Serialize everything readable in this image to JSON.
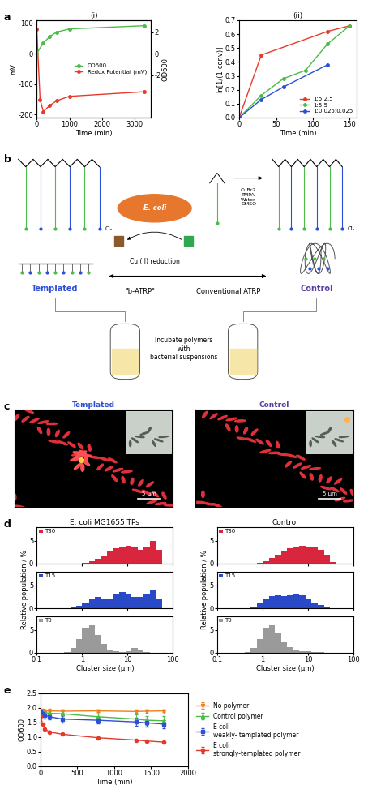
{
  "chart_data": [
    {
      "type": "line",
      "title": "(i)",
      "x_label": "Time (min)",
      "y_label": "mV",
      "y2_label": "OD600",
      "xlim": [
        0,
        3500
      ],
      "xticks": [
        0,
        1000,
        2000,
        3000
      ],
      "ylim": [
        -210,
        110
      ],
      "yticks": [
        -200,
        -100,
        0,
        100
      ],
      "y2lim": [
        -5.9,
        3.1
      ],
      "y2ticks": [
        -2,
        0,
        2
      ],
      "legend": "center right",
      "series": [
        {
          "name": "OD600",
          "color": "#4cbb47",
          "marker": "circle",
          "axis": "y2",
          "x": [
            0,
            200,
            400,
            600,
            1000,
            3300
          ],
          "values": [
            0.05,
            1.0,
            1.6,
            2.0,
            2.3,
            2.6
          ]
        },
        {
          "name": "Redox Potential (mV)",
          "color": "#e53a2a",
          "marker": "circle",
          "x": [
            0,
            100,
            200,
            400,
            600,
            1000,
            3300
          ],
          "values": [
            80,
            -150,
            -190,
            -170,
            -155,
            -140,
            -125
          ]
        }
      ]
    },
    {
      "type": "line",
      "title": "(ii)",
      "x_label": "Time (min)",
      "y_label": "ln[1/(1-conv)]",
      "xlim": [
        0,
        160
      ],
      "xticks": [
        0,
        50,
        100,
        150
      ],
      "ylim": [
        0,
        0.7
      ],
      "yticks": [
        {
          "value": 0,
          "label": "0.0"
        },
        0.1,
        0.2,
        0.3,
        0.4,
        0.5,
        0.6,
        0.7
      ],
      "legend": "lower right",
      "series": [
        {
          "name": "1:5:2.5",
          "color": "#e53a2a",
          "marker": "circle",
          "x": [
            0,
            30,
            120,
            150
          ],
          "values": [
            0,
            0.45,
            0.62,
            0.66
          ]
        },
        {
          "name": "1:5:5",
          "color": "#4cbb47",
          "marker": "circle",
          "x": [
            0,
            30,
            60,
            90,
            120,
            150
          ],
          "values": [
            0,
            0.16,
            0.28,
            0.34,
            0.53,
            0.66
          ]
        },
        {
          "name": "1:0.025:0.025",
          "color": "#2d4fd6",
          "marker": "circle",
          "x": [
            0,
            30,
            60,
            120
          ],
          "values": [
            0,
            0.13,
            0.22,
            0.38
          ]
        }
      ]
    },
    {
      "type": "histogram",
      "title": "E. coli MG1655 TPs",
      "log": "x",
      "tick_labels": "y",
      "xlim": [
        0.1,
        100
      ],
      "xticks": [
        0.1,
        1,
        10,
        100
      ],
      "ylim": [
        0,
        8
      ],
      "yticks": [
        0,
        5
      ],
      "legend": "upper left",
      "bins": [
        0.4,
        0.55,
        0.75,
        1.0,
        1.4,
        1.9,
        2.6,
        3.5,
        4.8,
        6.5,
        8.9,
        12,
        16.5,
        22.5,
        30.5,
        42,
        57
      ],
      "series": [
        {
          "name": "T30",
          "color": "#d7263d",
          "values": [
            0,
            0,
            0,
            0.2,
            0.5,
            1.0,
            1.8,
            2.6,
            3.3,
            3.8,
            4.0,
            3.6,
            3.0,
            3.5,
            5.0,
            3.0
          ]
        }
      ]
    },
    {
      "type": "histogram",
      "y_label": "Relative population / %",
      "log": "x",
      "tick_labels": "y",
      "xlim": [
        0.1,
        100
      ],
      "xticks": [
        0.1,
        1,
        10,
        100
      ],
      "ylim": [
        0,
        8
      ],
      "yticks": [
        0,
        5
      ],
      "legend": "upper left",
      "bins": [
        0.4,
        0.55,
        0.75,
        1.0,
        1.4,
        1.9,
        2.6,
        3.5,
        4.8,
        6.5,
        8.9,
        12,
        16.5,
        22.5,
        30.5,
        42,
        57
      ],
      "series": [
        {
          "name": "T15",
          "color": "#2a49c8",
          "values": [
            0,
            0.1,
            0.5,
            1.2,
            2.2,
            2.5,
            2.0,
            2.2,
            3.0,
            3.5,
            3.2,
            2.5,
            2.5,
            3.0,
            4.0,
            2.0
          ]
        }
      ]
    },
    {
      "type": "histogram",
      "x_label": "Cluster size (μm)",
      "log": "x",
      "xlim": [
        0.1,
        100
      ],
      "xticks": [
        0.1,
        1,
        10,
        100
      ],
      "ylim": [
        0,
        8
      ],
      "yticks": [
        0,
        5
      ],
      "legend": "upper left",
      "bins": [
        0.4,
        0.55,
        0.75,
        1.0,
        1.4,
        1.9,
        2.6,
        3.5,
        4.8,
        6.5,
        8.9,
        12,
        16.5,
        22.5,
        30.5,
        42,
        57
      ],
      "series": [
        {
          "name": "T0",
          "color": "#9a9a9a",
          "values": [
            0.2,
            1.0,
            3.0,
            5.5,
            6.0,
            4.0,
            2.0,
            0.8,
            0.3,
            0.1,
            0.3,
            1.0,
            0.8,
            0.1,
            0,
            0
          ]
        }
      ]
    },
    {
      "type": "histogram",
      "title": "Control",
      "log": "x",
      "tick_labels": "y",
      "xlim": [
        0.1,
        100
      ],
      "xticks": [
        0.1,
        1,
        10,
        100
      ],
      "ylim": [
        0,
        8
      ],
      "yticks": [
        0,
        5
      ],
      "legend": "upper left",
      "bins": [
        0.4,
        0.55,
        0.75,
        1.0,
        1.4,
        1.9,
        2.6,
        3.5,
        4.8,
        6.5,
        8.9,
        12,
        16.5,
        22.5,
        30.5,
        42,
        57
      ],
      "series": [
        {
          "name": "T30",
          "color": "#d7263d",
          "values": [
            0,
            0,
            0.2,
            0.5,
            1.2,
            2.0,
            2.8,
            3.4,
            3.8,
            4.0,
            3.8,
            3.5,
            3.0,
            2.0,
            0.3,
            0
          ]
        }
      ]
    },
    {
      "type": "histogram",
      "y_label": "Relative population / %",
      "log": "x",
      "tick_labels": "y",
      "xlim": [
        0.1,
        100
      ],
      "xticks": [
        0.1,
        1,
        10,
        100
      ],
      "ylim": [
        0,
        8
      ],
      "yticks": [
        0,
        5
      ],
      "legend": "upper left",
      "bins": [
        0.4,
        0.55,
        0.75,
        1.0,
        1.4,
        1.9,
        2.6,
        3.5,
        4.8,
        6.5,
        8.9,
        12,
        16.5,
        22.5,
        30.5,
        42,
        57
      ],
      "series": [
        {
          "name": "T15",
          "color": "#2a49c8",
          "values": [
            0,
            0.3,
            1.0,
            2.0,
            2.6,
            2.8,
            2.7,
            2.8,
            3.0,
            2.8,
            2.0,
            1.2,
            0.8,
            0.2,
            0,
            0
          ]
        }
      ]
    },
    {
      "type": "histogram",
      "x_label": "Cluster size (μm)",
      "log": "x",
      "xlim": [
        0.1,
        100
      ],
      "xticks": [
        0.1,
        1,
        10,
        100
      ],
      "ylim": [
        0,
        8
      ],
      "yticks": [
        0,
        5
      ],
      "legend": "upper left",
      "bins": [
        0.4,
        0.55,
        0.75,
        1.0,
        1.4,
        1.9,
        2.6,
        3.5,
        4.8,
        6.5,
        8.9,
        12,
        16.5,
        22.5,
        30.5,
        42,
        57
      ],
      "series": [
        {
          "name": "T0",
          "color": "#9a9a9a",
          "values": [
            0.2,
            1.0,
            3.0,
            5.5,
            6.0,
            4.5,
            2.5,
            1.2,
            0.7,
            0.4,
            0.3,
            0.2,
            0.1,
            0,
            0,
            0
          ]
        }
      ]
    },
    {
      "type": "line",
      "x_label": "Time (min)",
      "y_label": "OD600",
      "xlim": [
        0,
        2000
      ],
      "xticks": [
        0,
        500,
        1000,
        1500,
        2000
      ],
      "ylim": [
        0,
        2.5
      ],
      "yticks": [
        {
          "value": 0,
          "label": "0.0"
        },
        0.5,
        1.0,
        1.5,
        2.0,
        2.5
      ],
      "legend": "right",
      "x": [
        0,
        30,
        60,
        120,
        300,
        780,
        1300,
        1440,
        1680
      ],
      "series": [
        {
          "name": "No polymer",
          "color": "#f07f1e",
          "marker": "triangle_down",
          "values": [
            1.88,
            1.88,
            1.89,
            1.9,
            1.89,
            1.9,
            1.88,
            1.89,
            1.9
          ],
          "errors": [
            0.08,
            0.08,
            0.06,
            0.06,
            0.05,
            0.05,
            0.05,
            0.05,
            0.05
          ]
        },
        {
          "name": "Control polymer",
          "color": "#4cbb47",
          "marker": "triangle_up",
          "values": [
            1.85,
            1.85,
            1.84,
            1.82,
            1.8,
            1.7,
            1.62,
            1.58,
            1.56
          ],
          "errors": [
            0.05,
            0.05,
            0.06,
            0.06,
            0.08,
            0.1,
            0.15,
            0.15,
            0.15
          ]
        },
        {
          "name": "E coli\nweakly- templated polymer",
          "color": "#2d4fd6",
          "marker": "square",
          "values": [
            1.85,
            1.8,
            1.75,
            1.7,
            1.62,
            1.58,
            1.52,
            1.49,
            1.45
          ],
          "errors": [
            0.06,
            0.08,
            0.1,
            0.1,
            0.12,
            0.12,
            0.14,
            0.14,
            0.14
          ]
        },
        {
          "name": "E coli\nstrongly-templated polymer",
          "color": "#e53a2a",
          "marker": "circle",
          "values": [
            1.72,
            1.45,
            1.28,
            1.18,
            1.1,
            0.98,
            0.9,
            0.87,
            0.83
          ],
          "errors": [
            0.04,
            0.03,
            0.03,
            0.03,
            0.03,
            0.03,
            0.03,
            0.03,
            0.03
          ]
        }
      ]
    }
  ],
  "diagram": {
    "panel_labels": [
      "a",
      "b",
      "c",
      "d",
      "e"
    ],
    "b": {
      "left_label": "Templated",
      "right_label": "Control",
      "organism": "E. coli",
      "reduction": "Cu (II) reduction",
      "left_method": "\"b-ATRP\"",
      "right_method": "Conventional ATRP",
      "reagents": [
        "CuBr2",
        "TMPA",
        "Water",
        "DMSO"
      ],
      "counterion": "Cl-",
      "step": "Incubate polymers\nwith\nbacterial suspensions"
    },
    "c": {
      "panels": [
        "Templated",
        "Control"
      ],
      "scale_bar": "5 μm"
    }
  }
}
